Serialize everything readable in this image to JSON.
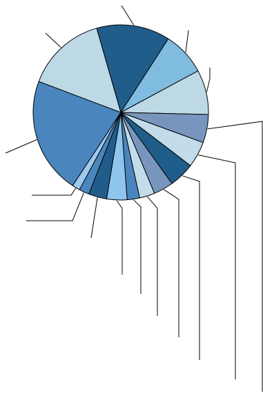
{
  "chart_data": {
    "type": "pie",
    "title": "",
    "legend": "none",
    "slice_labels_visible": false,
    "leader_lines": true,
    "stroke_color": "#000000",
    "start_angle_deg": -106,
    "slices": [
      {
        "value": 13.0,
        "color": "#215d8a"
      },
      {
        "value": 7.7,
        "color": "#7fbce0"
      },
      {
        "value": 7.9,
        "color": "#bed9e6"
      },
      {
        "value": 5.0,
        "color": "#7896bd"
      },
      {
        "value": 4.6,
        "color": "#c2dcea"
      },
      {
        "value": 4.5,
        "color": "#215d8a"
      },
      {
        "value": 3.5,
        "color": "#7896bd"
      },
      {
        "value": 2.7,
        "color": "#c2dcea"
      },
      {
        "value": 2.2,
        "color": "#4a86bd"
      },
      {
        "value": 3.6,
        "color": "#8ec5ec"
      },
      {
        "value": 3.2,
        "color": "#215d8a"
      },
      {
        "value": 1.8,
        "color": "#4a86bd"
      },
      {
        "value": 1.4,
        "color": "#9ecaf0"
      },
      {
        "value": 20.6,
        "color": "#4a86bd"
      },
      {
        "value": 14.2,
        "color": "#bed9e6"
      }
    ]
  }
}
